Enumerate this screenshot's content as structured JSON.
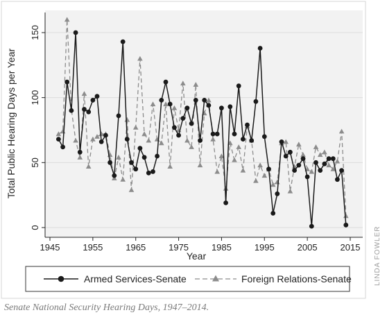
{
  "caption": "Senate National Security Hearing Days, 1947–2014.",
  "credit": "LINDA FOWLER",
  "colors": {
    "plot_bg": "#f2f2f2",
    "frame": "#cfcfcf",
    "series_armed": "#1a1a1a",
    "series_foreign": "#8c8c8c"
  },
  "chart_data": {
    "type": "line",
    "title": "",
    "xlabel": "Year",
    "ylabel": "Total Public Hearing Days per Year",
    "xlim": [
      1945,
      2015
    ],
    "ylim": [
      0,
      150
    ],
    "xticks": [
      1945,
      1955,
      1965,
      1975,
      1985,
      1995,
      2005,
      2015
    ],
    "yticks": [
      0,
      50,
      100,
      150
    ],
    "grid": true,
    "legend_position": "bottom",
    "series": [
      {
        "name": "Armed Services-Senate",
        "line": "solid",
        "marker": "circle",
        "x": [
          1947,
          1948,
          1949,
          1950,
          1951,
          1952,
          1953,
          1954,
          1955,
          1956,
          1957,
          1958,
          1959,
          1960,
          1961,
          1962,
          1963,
          1964,
          1965,
          1966,
          1967,
          1968,
          1969,
          1970,
          1971,
          1972,
          1973,
          1974,
          1975,
          1976,
          1977,
          1978,
          1979,
          1980,
          1981,
          1982,
          1983,
          1984,
          1985,
          1986,
          1987,
          1988,
          1989,
          1990,
          1991,
          1992,
          1993,
          1994,
          1995,
          1996,
          1997,
          1998,
          1999,
          2000,
          2001,
          2002,
          2003,
          2004,
          2005,
          2006,
          2007,
          2008,
          2009,
          2010,
          2011,
          2012,
          2013,
          2014
        ],
        "values": [
          68,
          62,
          112,
          90,
          150,
          58,
          91,
          89,
          98,
          101,
          66,
          71,
          50,
          40,
          86,
          143,
          68,
          50,
          45,
          61,
          54,
          42,
          43,
          55,
          98,
          112,
          95,
          77,
          71,
          84,
          92,
          80,
          98,
          67,
          98,
          94,
          72,
          72,
          92,
          19,
          93,
          72,
          109,
          68,
          79,
          67,
          97,
          138,
          70,
          45,
          11,
          26,
          66,
          55,
          58,
          44,
          48,
          53,
          39,
          1,
          50,
          44,
          49,
          53,
          53,
          37,
          44,
          2
        ]
      },
      {
        "name": "Foreign Relations-Senate",
        "line": "dashed",
        "marker": "triangle",
        "x": [
          1947,
          1948,
          1949,
          1950,
          1951,
          1952,
          1953,
          1954,
          1955,
          1956,
          1957,
          1958,
          1959,
          1960,
          1961,
          1962,
          1963,
          1964,
          1965,
          1966,
          1967,
          1968,
          1969,
          1970,
          1971,
          1972,
          1973,
          1974,
          1975,
          1976,
          1977,
          1978,
          1979,
          1980,
          1981,
          1982,
          1983,
          1984,
          1985,
          1986,
          1987,
          1988,
          1989,
          1990,
          1991,
          1992,
          1993,
          1994,
          1995,
          1996,
          1997,
          1998,
          1999,
          2000,
          2001,
          2002,
          2003,
          2004,
          2005,
          2006,
          2007,
          2008,
          2009,
          2010,
          2011,
          2012,
          2013,
          2014
        ],
        "values": [
          72,
          74,
          160,
          91,
          67,
          54,
          103,
          47,
          68,
          70,
          72,
          72,
          56,
          38,
          54,
          37,
          83,
          29,
          77,
          130,
          72,
          67,
          95,
          68,
          65,
          95,
          47,
          92,
          75,
          111,
          67,
          62,
          110,
          48,
          88,
          98,
          68,
          43,
          55,
          30,
          65,
          52,
          62,
          44,
          78,
          67,
          36,
          48,
          40,
          45,
          33,
          35,
          65,
          66,
          28,
          47,
          64,
          56,
          45,
          43,
          62,
          56,
          58,
          48,
          45,
          51,
          74,
          9
        ]
      }
    ]
  }
}
